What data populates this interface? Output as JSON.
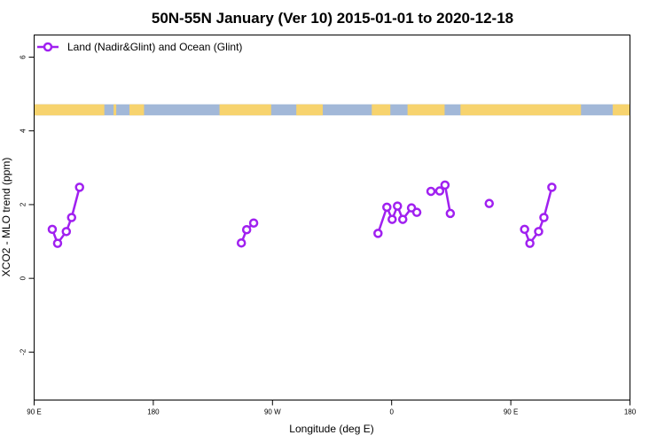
{
  "chart_data": {
    "type": "line",
    "title": "50N-55N January (Ver 10)   2015-01-01 to 2020-12-18",
    "xlabel": "Longitude (deg E)",
    "ylabel": "XCO2 - MLO trend (ppm)",
    "x_ticks": [
      {
        "value": 90,
        "label": "90 E"
      },
      {
        "value": 180,
        "label": "180"
      },
      {
        "value": 270,
        "label": "90 W"
      },
      {
        "value": 360,
        "label": "0"
      },
      {
        "value": 450,
        "label": "90 E"
      },
      {
        "value": 540,
        "label": "180"
      }
    ],
    "y_ticks": [
      {
        "value": -2,
        "label": "-2"
      },
      {
        "value": 0,
        "label": "0"
      },
      {
        "value": 2,
        "label": "2"
      },
      {
        "value": 4,
        "label": "4"
      },
      {
        "value": 6,
        "label": "6"
      }
    ],
    "xlim": [
      90,
      540
    ],
    "ylim": [
      -3.3,
      6.6
    ],
    "grid": false,
    "legend_position": "top-left",
    "series": [
      {
        "name": "Land (Nadir&Glint) and Ocean (Glint)",
        "color": "#a020f0",
        "segments": [
          [
            [
              103.7,
              1.33
            ],
            [
              107.7,
              0.95
            ],
            [
              114.3,
              1.27
            ],
            [
              118.3,
              1.65
            ],
            [
              124.3,
              2.47
            ]
          ],
          [
            [
              246.5,
              0.96
            ],
            [
              250.5,
              1.32
            ],
            [
              255.8,
              1.5
            ]
          ],
          [
            [
              349.7,
              1.22
            ],
            [
              356.4,
              1.93
            ],
            [
              360.4,
              1.6
            ],
            [
              364.4,
              1.96
            ],
            [
              368.4,
              1.6
            ],
            [
              375.0,
              1.91
            ],
            [
              379.0,
              1.79
            ]
          ],
          [
            [
              389.7,
              2.36
            ],
            [
              396.3,
              2.37
            ],
            [
              400.3,
              2.53
            ],
            [
              404.3,
              1.76
            ]
          ],
          [
            [
              433.7,
              2.03
            ]
          ],
          [
            [
              460.4,
              1.33
            ],
            [
              464.4,
              0.95
            ],
            [
              471.0,
              1.27
            ],
            [
              475.0,
              1.65
            ],
            [
              481.0,
              2.47
            ]
          ]
        ]
      }
    ],
    "land_ocean_strip": {
      "y_range": [
        4.42,
        4.72
      ],
      "ocean_color": "#a2b8d8",
      "land_color": "#f7d36e",
      "land_spans": [
        [
          90,
          143
        ],
        [
          150,
          152
        ],
        [
          162,
          173
        ],
        [
          230,
          269
        ],
        [
          288,
          308
        ],
        [
          345,
          359
        ],
        [
          372,
          400
        ],
        [
          412,
          503
        ],
        [
          527,
          540
        ]
      ]
    }
  }
}
